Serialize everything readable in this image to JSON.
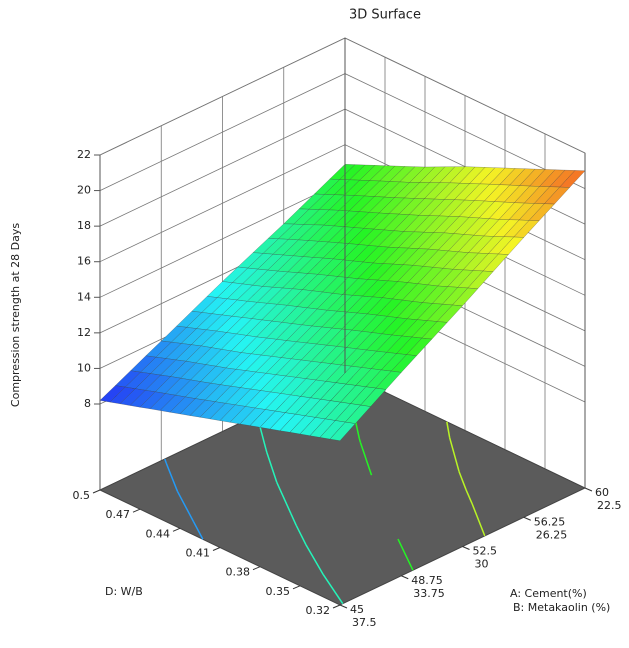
{
  "chart_data": {
    "type": "surface",
    "title": "3D Surface",
    "z_label": "Compression strength at 28 Days",
    "zlim": [
      8,
      22
    ],
    "zticks": [
      8,
      10,
      12,
      14,
      16,
      18,
      20,
      22
    ],
    "d_label": "D: W/B",
    "d_ticks": [
      0.5,
      0.47,
      0.44,
      0.41,
      0.38,
      0.35,
      0.32
    ],
    "a_label": "A: Cement(%)",
    "a_ticks": [
      45,
      48.75,
      52.5,
      56.25,
      60
    ],
    "b_label": "B: Metakaolin (%)",
    "b_ticks": [
      37.5,
      33.75,
      30,
      26.25,
      22.5
    ],
    "values": [
      [
        8.2,
        9.9,
        11.6,
        13.2,
        14.9
      ],
      [
        8.9,
        10.7,
        12.4,
        14.2,
        15.9
      ],
      [
        9.6,
        11.4,
        13.3,
        15.1,
        16.9
      ],
      [
        10.3,
        12.2,
        14.1,
        16.0,
        18.0
      ],
      [
        11.0,
        13.0,
        15.0,
        17.0,
        19.0
      ],
      [
        11.7,
        13.8,
        15.8,
        17.9,
        20.0
      ],
      [
        12.4,
        14.6,
        16.7,
        18.9,
        21.0
      ]
    ],
    "contour_levels": [
      10,
      12.5,
      15,
      17.5,
      20
    ]
  }
}
